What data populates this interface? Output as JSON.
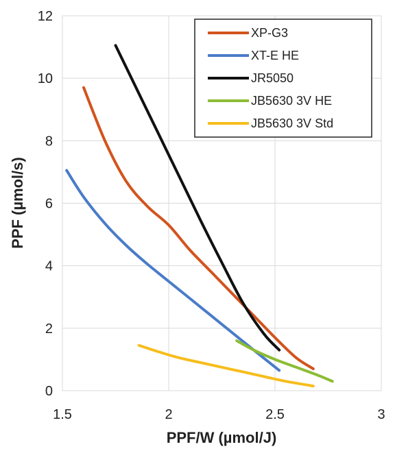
{
  "chart_data": {
    "type": "line",
    "title": "",
    "xlabel": "PPF/W (µmol/J)",
    "ylabel": "PPF (µmol/s)",
    "xlim": [
      1.5,
      3
    ],
    "ylim": [
      0,
      12
    ],
    "xticks": [
      1.5,
      2,
      2.5,
      3
    ],
    "xtick_labels": [
      "1.5",
      "2",
      "2.5",
      "3"
    ],
    "yticks": [
      0,
      2,
      4,
      6,
      8,
      10,
      12
    ],
    "ytick_labels": [
      "0",
      "2",
      "4",
      "6",
      "8",
      "10",
      "12"
    ],
    "grid": "horizontal",
    "legend_position": "top-right",
    "series": [
      {
        "name": "XP-G3",
        "color": "#d2541e",
        "x": [
          1.6,
          1.7,
          1.8,
          1.9,
          2.0,
          2.1,
          2.2,
          2.3,
          2.4,
          2.5,
          2.6,
          2.68
        ],
        "y": [
          9.7,
          8.0,
          6.7,
          5.9,
          5.3,
          4.5,
          3.8,
          3.1,
          2.4,
          1.7,
          1.05,
          0.7
        ]
      },
      {
        "name": "XT-E HE",
        "color": "#4a7cc8",
        "x": [
          1.52,
          1.6,
          1.7,
          1.8,
          1.9,
          2.0,
          2.1,
          2.2,
          2.3,
          2.4,
          2.52
        ],
        "y": [
          7.05,
          6.2,
          5.35,
          4.65,
          4.05,
          3.5,
          2.95,
          2.4,
          1.85,
          1.3,
          0.65
        ]
      },
      {
        "name": "JR5050",
        "color": "#111111",
        "x": [
          1.75,
          1.85,
          1.95,
          2.05,
          2.15,
          2.25,
          2.35,
          2.45,
          2.52
        ],
        "y": [
          11.05,
          9.65,
          8.25,
          6.85,
          5.45,
          4.1,
          2.8,
          1.8,
          1.3
        ]
      },
      {
        "name": "JB5630 3V HE",
        "color": "#8cbc35",
        "x": [
          2.32,
          2.4,
          2.5,
          2.6,
          2.7,
          2.77
        ],
        "y": [
          1.6,
          1.3,
          1.0,
          0.75,
          0.5,
          0.3
        ]
      },
      {
        "name": "JB5630 3V Std",
        "color": "#f7bd1c",
        "x": [
          1.86,
          1.95,
          2.05,
          2.15,
          2.25,
          2.35,
          2.45,
          2.55,
          2.68
        ],
        "y": [
          1.45,
          1.25,
          1.05,
          0.9,
          0.75,
          0.6,
          0.45,
          0.3,
          0.15
        ]
      }
    ]
  }
}
